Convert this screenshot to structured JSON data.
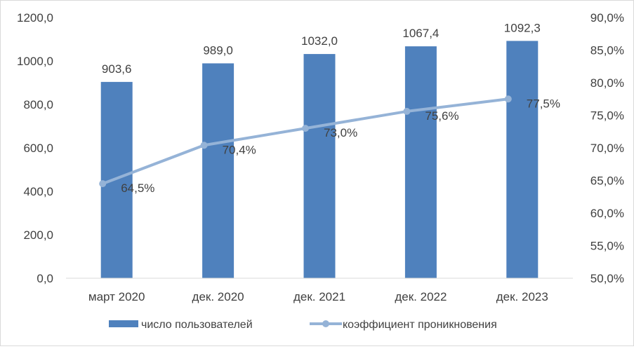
{
  "chart_data": {
    "type": "bar",
    "categories": [
      "март 2020",
      "дек. 2020",
      "дек. 2021",
      "дек. 2022",
      "дек. 2023"
    ],
    "series": [
      {
        "name": "число пользователей",
        "type": "bar",
        "axis": "left",
        "values": [
          903.6,
          989.0,
          1032.0,
          1067.4,
          1092.3
        ],
        "labels": [
          "903,6",
          "989,0",
          "1032,0",
          "1067,4",
          "1092,3"
        ],
        "color": "#4f81bd"
      },
      {
        "name": "коэффициент проникновения",
        "type": "line",
        "axis": "right",
        "values": [
          64.5,
          70.4,
          73.0,
          75.6,
          77.5
        ],
        "labels": [
          "64,5%",
          "70,4%",
          "73,0%",
          "75,6%",
          "77,5%"
        ],
        "color": "#95b3d7"
      }
    ],
    "y_left": {
      "min": 0,
      "max": 1200,
      "step": 200,
      "ticks": [
        "0,0",
        "200,0",
        "400,0",
        "600,0",
        "800,0",
        "1000,0",
        "1200,0"
      ]
    },
    "y_right": {
      "min": 50,
      "max": 90,
      "step": 5,
      "ticks": [
        "50,0%",
        "55,0%",
        "60,0%",
        "65,0%",
        "70,0%",
        "75,0%",
        "80,0%",
        "85,0%",
        "90,0%"
      ]
    },
    "grid": false,
    "legend_position": "bottom"
  }
}
